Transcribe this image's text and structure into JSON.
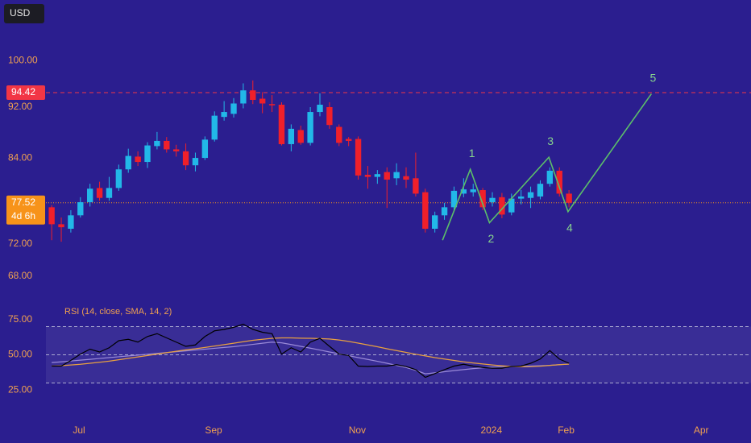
{
  "currency": "USD",
  "chart_data": [
    {
      "type": "candlestick",
      "log": true,
      "ylim": [
        64.9,
        105.2
      ],
      "yticks": [
        {
          "value": 100,
          "label": "100.00"
        },
        {
          "value": 92,
          "label": "92.00"
        },
        {
          "value": 84,
          "label": "84.00"
        },
        {
          "value": 72,
          "label": "72.00"
        },
        {
          "value": 68,
          "label": "68.00"
        }
      ],
      "xlim": [
        -0.6,
        73
      ],
      "xticks": [
        {
          "value": 2.85,
          "label": "Jul"
        },
        {
          "value": 16.9,
          "label": "Sep"
        },
        {
          "value": 31.9,
          "label": "Nov"
        },
        {
          "value": 45.9,
          "label": "2024"
        },
        {
          "value": 53.7,
          "label": "Feb"
        },
        {
          "value": 67.8,
          "label": "Apr"
        }
      ],
      "up_color": "#22b8e8",
      "down_color": "#f0202a",
      "open": [
        76.9,
        74.6,
        74.0,
        75.8,
        77.6,
        79.6,
        78.2,
        79.6,
        82.3,
        84.2,
        83.4,
        85.8,
        86.6,
        85.3,
        85.0,
        82.9,
        84.0,
        86.8,
        90.4,
        90.9,
        92.6,
        94.8,
        93.4,
        92.5,
        92.4,
        86.1,
        88.3,
        86.3,
        91.2,
        92.0,
        88.8,
        86.9,
        86.9,
        81.5,
        81.2,
        81.9,
        81.0,
        81.3,
        81.0,
        79.0,
        74.0,
        75.8,
        76.9,
        78.8,
        79.0,
        79.3,
        77.6,
        78.3,
        76.2,
        78.1,
        78.2,
        78.4,
        80.2,
        82.1,
        78.8
      ],
      "high": [
        77.2,
        75.5,
        76.5,
        78.3,
        80.2,
        80.5,
        81.2,
        83.0,
        85.4,
        85.0,
        86.4,
        88.0,
        87.2,
        86.0,
        86.2,
        84.8,
        87.3,
        91.3,
        93.0,
        93.5,
        96.0,
        96.5,
        94.5,
        94.0,
        92.8,
        89.2,
        89.0,
        92.0,
        94.3,
        92.8,
        89.2,
        87.2,
        87.3,
        82.8,
        82.2,
        82.6,
        83.2,
        82.6,
        84.8,
        79.5,
        76.3,
        77.5,
        79.8,
        81.0,
        80.2,
        79.6,
        79.0,
        78.9,
        78.8,
        79.3,
        79.8,
        80.7,
        82.6,
        82.6,
        79.3
      ],
      "low": [
        72.5,
        72.3,
        73.5,
        75.5,
        77.0,
        77.8,
        77.8,
        79.2,
        81.8,
        82.8,
        82.5,
        85.3,
        84.8,
        84.2,
        82.2,
        82.0,
        83.7,
        86.5,
        89.8,
        90.3,
        91.8,
        92.5,
        91.0,
        91.2,
        85.9,
        85.0,
        86.0,
        85.9,
        90.5,
        88.5,
        85.8,
        85.8,
        80.8,
        79.5,
        80.2,
        76.8,
        80.0,
        79.6,
        78.4,
        73.5,
        73.5,
        75.2,
        76.3,
        78.3,
        78.4,
        76.5,
        77.0,
        75.4,
        75.8,
        77.3,
        76.8,
        78.0,
        79.8,
        78.4,
        76.9
      ],
      "close": [
        74.6,
        74.2,
        75.8,
        77.6,
        79.5,
        78.2,
        79.6,
        82.3,
        84.3,
        83.4,
        85.9,
        86.6,
        85.3,
        85.0,
        82.9,
        84.0,
        86.8,
        90.6,
        91.2,
        92.6,
        94.8,
        93.2,
        92.6,
        92.3,
        86.1,
        88.5,
        86.3,
        91.2,
        92.4,
        89.1,
        86.3,
        86.6,
        81.4,
        81.2,
        81.6,
        80.8,
        81.9,
        80.8,
        78.8,
        74.0,
        75.8,
        76.9,
        79.2,
        79.4,
        79.4,
        76.9,
        78.2,
        75.9,
        78.1,
        78.4,
        79.0,
        80.2,
        82.1,
        78.8,
        77.52
      ],
      "price_lines": [
        {
          "value": 94.42,
          "label": "94.42",
          "color": "#f23645",
          "style": "dashed"
        },
        {
          "value": 77.52,
          "label": "77.52",
          "countdown": "4d 6h",
          "color": "#f7931a",
          "style": "dotted"
        }
      ],
      "wave": {
        "color": "#5cbf6a",
        "label_color": "#86d28e",
        "x": [
          40.8,
          43.7,
          45.7,
          51.9,
          53.9,
          62.6
        ],
        "y": [
          72.5,
          82.3,
          74.8,
          84.1,
          76.3,
          94.2
        ],
        "labels": [
          null,
          "1",
          "2",
          "3",
          "4",
          "5"
        ]
      }
    },
    {
      "type": "line",
      "title": "RSI (14, close, SMA, 14, 2)",
      "ylim": [
        16,
        80
      ],
      "yticks": [
        {
          "value": 75,
          "label": "75.00"
        },
        {
          "value": 50,
          "label": "50.00"
        },
        {
          "value": 25,
          "label": "25.00"
        }
      ],
      "bands": [
        70,
        50,
        30
      ],
      "series": [
        {
          "color": "#9a8ad8",
          "values": [
            44.5,
            45,
            45.6,
            46.2,
            46.8,
            47.4,
            48,
            48.6,
            49.2,
            49.8,
            50.4,
            51,
            51.6,
            52.2,
            52.8,
            53.4,
            54,
            54.6,
            55.2,
            55.8,
            56.6,
            57.4,
            58.2,
            59,
            58.5,
            57.3,
            56,
            54.7,
            53.4,
            52,
            50.7,
            49.4,
            48,
            46.7,
            45.4,
            44,
            42.5,
            41,
            39,
            36.5,
            37.2,
            38,
            38.8,
            39.5,
            40.2,
            40.8,
            41.3,
            41.6,
            41.8,
            41.9,
            42,
            42.2,
            42.5,
            43,
            43.4
          ]
        },
        {
          "color": "#e8a040",
          "values": [
            42,
            42.3,
            42.8,
            43.3,
            44,
            44.7,
            45.5,
            46.5,
            47.5,
            48.5,
            49.5,
            50.5,
            51.5,
            52.5,
            53.5,
            54.3,
            55.2,
            56.2,
            57.2,
            58.2,
            59.3,
            60.3,
            61,
            61.7,
            62,
            62,
            61.8,
            61.7,
            61.5,
            61.2,
            60.5,
            59.5,
            58.3,
            57,
            55.7,
            54.3,
            53,
            51.7,
            50.4,
            49.2,
            48,
            47,
            46,
            45,
            44.2,
            43.5,
            42.8,
            42.2,
            41.7,
            41.5,
            41.6,
            41.9,
            42.5,
            43,
            43.4
          ]
        },
        {
          "color": "#000000",
          "values": [
            42,
            42,
            46,
            50.5,
            54,
            52,
            55,
            60,
            61,
            59,
            63,
            65,
            62,
            59,
            56,
            57,
            63,
            67,
            68,
            69.5,
            71.7,
            68,
            66,
            65,
            50.5,
            55,
            52,
            59,
            61.7,
            56,
            50.5,
            49.5,
            42,
            41.7,
            42,
            42,
            43,
            41.7,
            39.5,
            34,
            36.7,
            39.5,
            42,
            43.3,
            42,
            41,
            40.5,
            40.5,
            41.7,
            42,
            44,
            47,
            53,
            47,
            44
          ]
        }
      ]
    }
  ]
}
